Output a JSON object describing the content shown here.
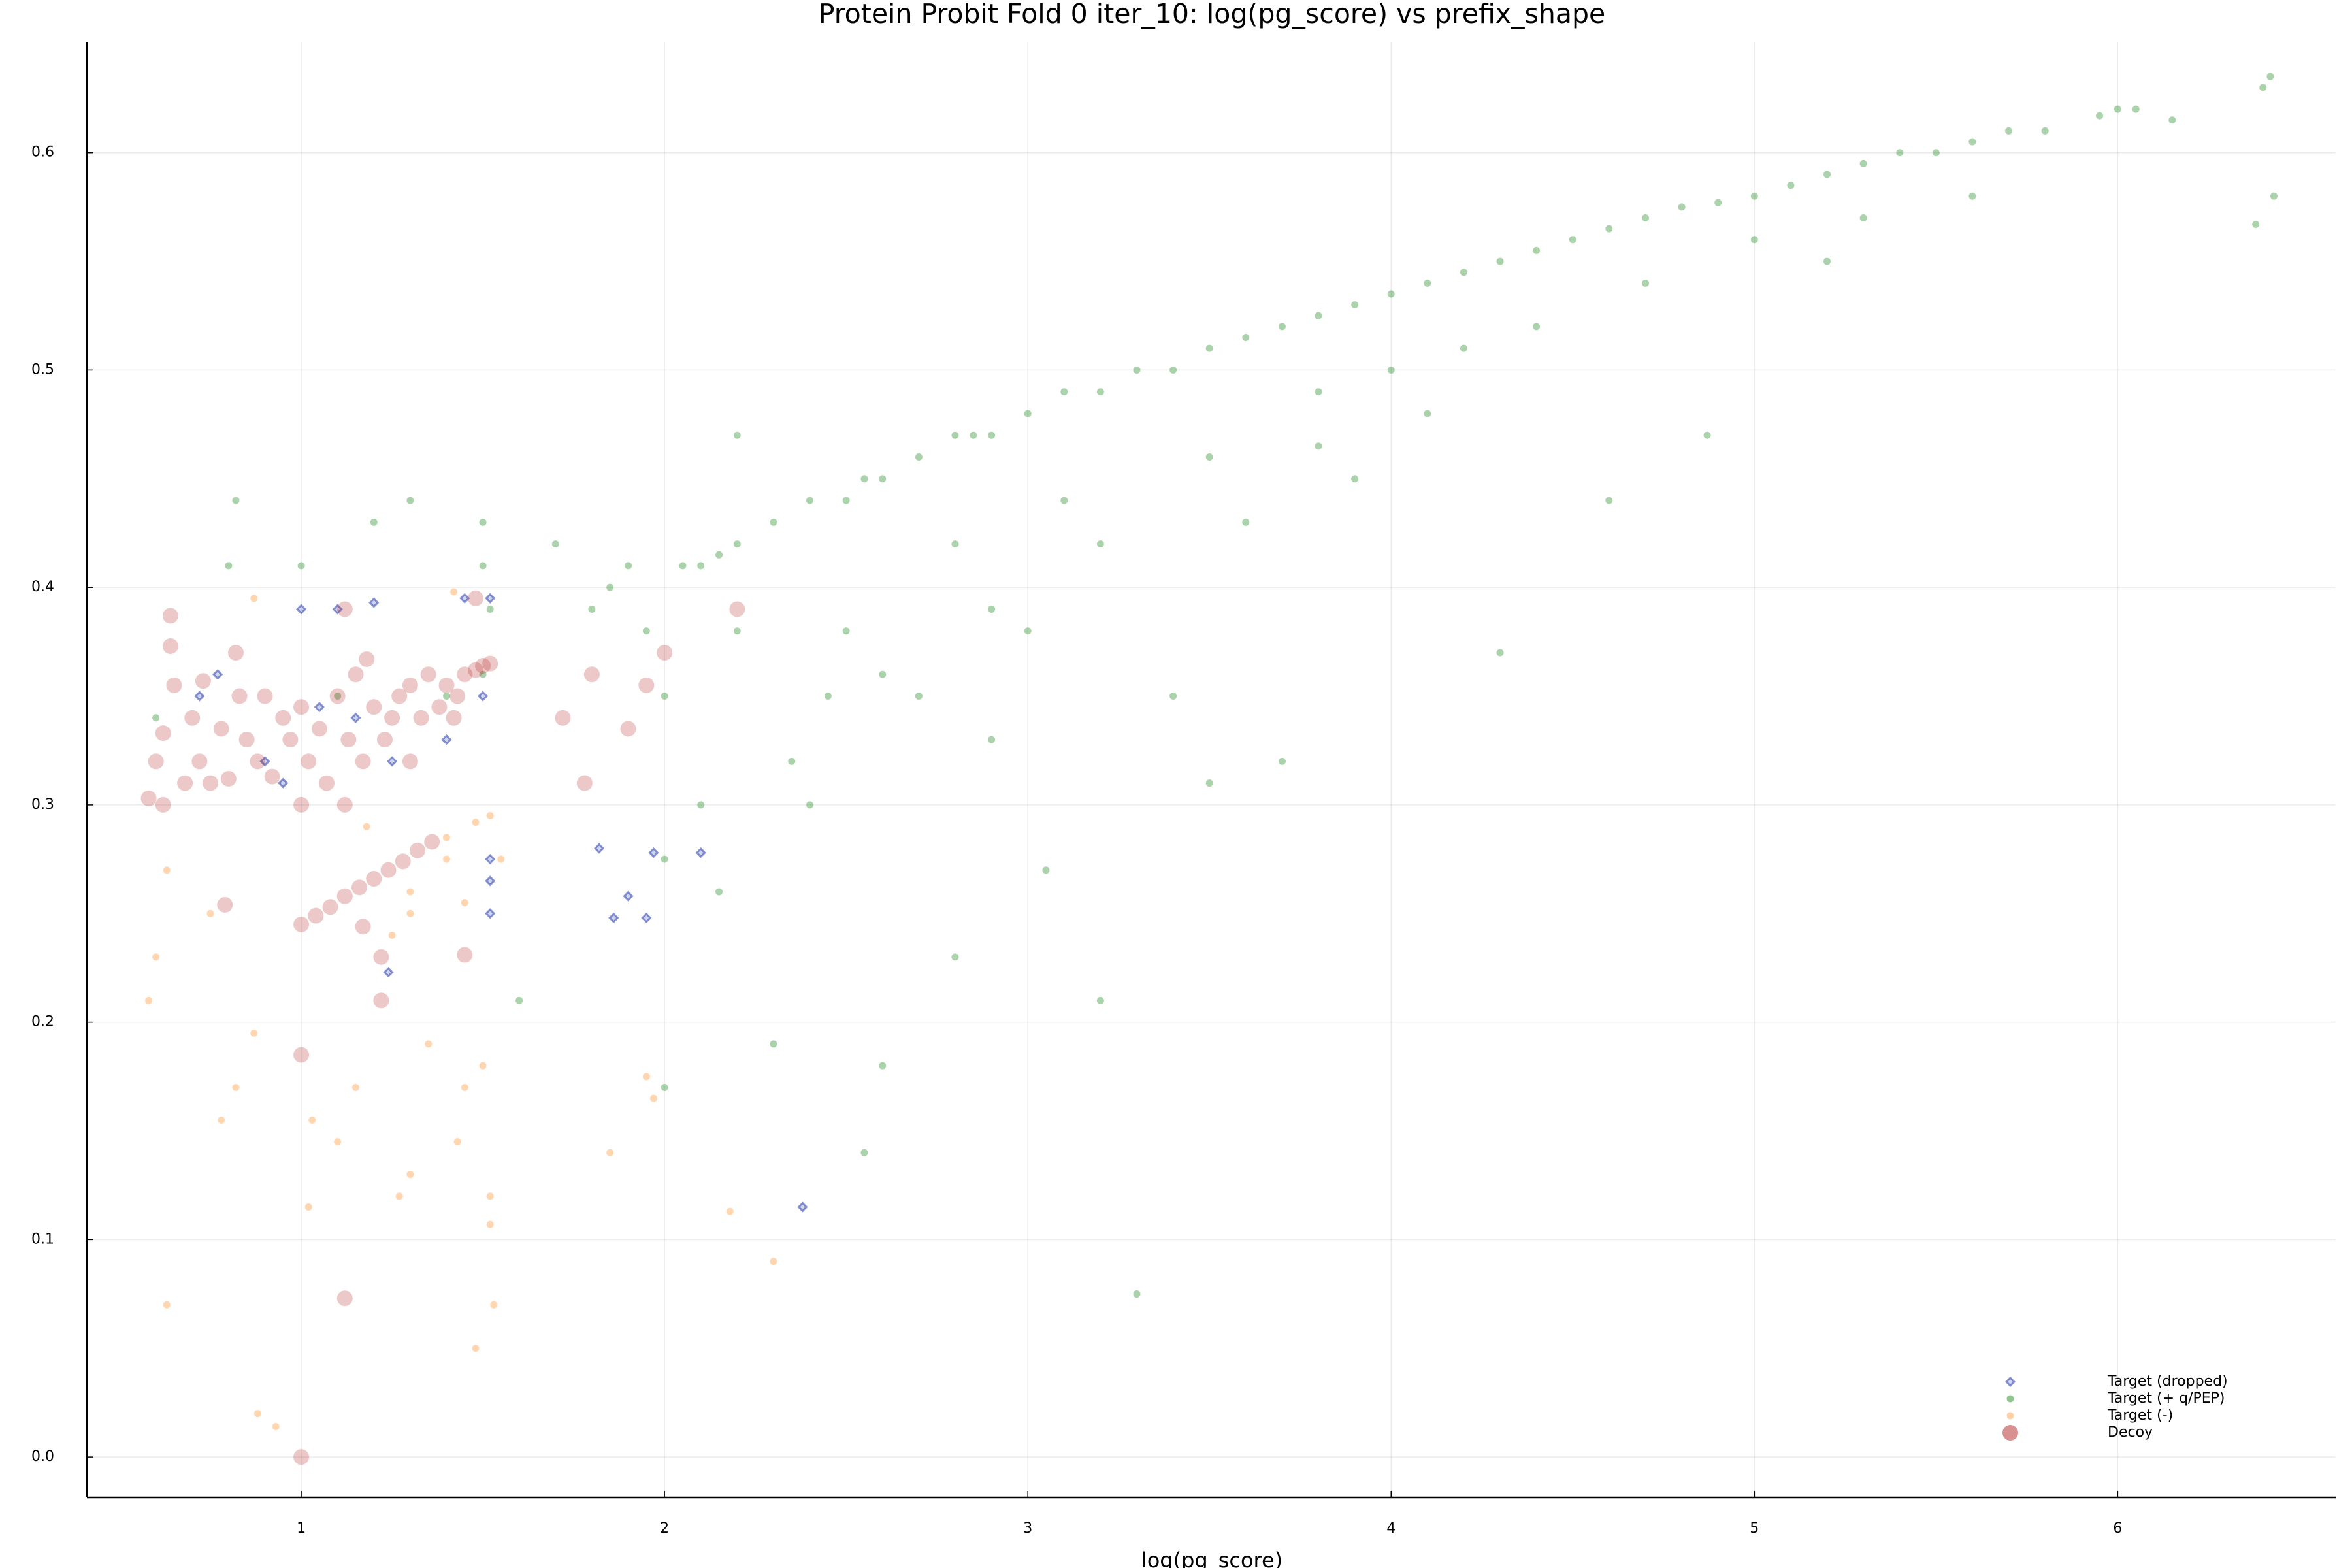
{
  "chart_data": {
    "type": "scatter",
    "title": "Protein Probit Fold 0 iter_10: log(pg_score) vs prefix_shape",
    "x_label": "log(pg_score)",
    "xlim": [
      0.41,
      6.6
    ],
    "ylim": [
      -0.0186,
      0.651
    ],
    "xticks": [
      1,
      2,
      3,
      4,
      5,
      6
    ],
    "yticks": [
      {
        "value": 0,
        "label": "0.0"
      },
      0.1,
      0.2,
      0.3,
      0.4,
      0.5,
      0.6
    ],
    "grid": true,
    "legend": "bottom-right",
    "series": [
      {
        "name": "Target (dropped)",
        "color": "#3a4fb5",
        "marker": "diamond",
        "alpha": 0.6,
        "x": [
          0.72,
          0.77,
          1.0,
          1.1,
          1.2,
          1.05,
          1.15,
          0.9,
          1.25,
          1.4,
          1.5,
          1.45,
          1.52,
          1.52,
          1.52,
          1.52,
          1.82,
          1.86,
          1.9,
          1.95,
          1.97,
          2.1,
          2.38,
          1.24,
          0.95
        ],
        "values": [
          0.35,
          0.36,
          0.39,
          0.39,
          0.393,
          0.345,
          0.34,
          0.32,
          0.32,
          0.33,
          0.35,
          0.395,
          0.395,
          0.275,
          0.265,
          0.25,
          0.28,
          0.248,
          0.258,
          0.248,
          0.278,
          0.278,
          0.115,
          0.223,
          0.31
        ]
      },
      {
        "name": "Target (+ q/PEP)",
        "color": "#228b22",
        "marker": "circle",
        "alpha": 0.38,
        "x": [
          0.6,
          0.8,
          0.82,
          1.0,
          1.1,
          1.2,
          1.3,
          1.5,
          1.5,
          1.52,
          1.5,
          1.4,
          1.6,
          1.7,
          1.8,
          1.85,
          1.9,
          1.95,
          2.0,
          2.05,
          2.1,
          2.15,
          2.2,
          2.2,
          2.1,
          2.0,
          2.2,
          2.3,
          2.4,
          2.5,
          2.55,
          2.6,
          2.5,
          2.6,
          2.4,
          2.3,
          2.55,
          2.6,
          2.7,
          2.8,
          2.85,
          2.9,
          2.8,
          2.9,
          2.7,
          2.8,
          2.9,
          3.0,
          3.1,
          3.2,
          3.3,
          3.1,
          3.2,
          3.0,
          3.05,
          3.2,
          3.3,
          3.4,
          3.5,
          3.6,
          3.5,
          3.6,
          3.5,
          3.7,
          3.7,
          3.8,
          3.9,
          3.8,
          3.9,
          4.0,
          4.1,
          4.2,
          4.0,
          4.1,
          4.3,
          4.3,
          4.4,
          4.5,
          4.4,
          4.6,
          4.6,
          4.7,
          4.8,
          4.7,
          4.87,
          4.9,
          5.0,
          5.1,
          5.0,
          5.2,
          5.3,
          5.4,
          5.3,
          5.5,
          5.6,
          5.7,
          5.6,
          5.8,
          5.95,
          6.0,
          6.05,
          6.15,
          6.4,
          6.42,
          6.43,
          6.38,
          2.0,
          2.15,
          2.35,
          2.45,
          3.4,
          3.8,
          4.2,
          5.2
        ],
        "values": [
          0.34,
          0.41,
          0.44,
          0.41,
          0.35,
          0.43,
          0.44,
          0.43,
          0.41,
          0.39,
          0.36,
          0.35,
          0.21,
          0.42,
          0.39,
          0.4,
          0.41,
          0.38,
          0.35,
          0.41,
          0.41,
          0.415,
          0.42,
          0.38,
          0.3,
          0.17,
          0.47,
          0.43,
          0.44,
          0.44,
          0.45,
          0.45,
          0.38,
          0.36,
          0.3,
          0.19,
          0.14,
          0.18,
          0.46,
          0.47,
          0.47,
          0.47,
          0.42,
          0.39,
          0.35,
          0.23,
          0.33,
          0.48,
          0.49,
          0.49,
          0.5,
          0.44,
          0.42,
          0.38,
          0.27,
          0.21,
          0.075,
          0.5,
          0.51,
          0.515,
          0.46,
          0.43,
          0.31,
          0.32,
          0.52,
          0.525,
          0.53,
          0.49,
          0.45,
          0.535,
          0.54,
          0.545,
          0.5,
          0.48,
          0.37,
          0.55,
          0.555,
          0.56,
          0.52,
          0.44,
          0.565,
          0.57,
          0.575,
          0.54,
          0.47,
          0.577,
          0.58,
          0.585,
          0.56,
          0.59,
          0.595,
          0.6,
          0.57,
          0.6,
          0.605,
          0.61,
          0.58,
          0.61,
          0.617,
          0.62,
          0.62,
          0.615,
          0.63,
          0.635,
          0.58,
          0.567,
          0.275,
          0.26,
          0.32,
          0.35,
          0.35,
          0.465,
          0.51,
          0.55
        ]
      },
      {
        "name": "Target (-)",
        "color": "#ffa54f",
        "marker": "circle",
        "alpha": 0.45,
        "x": [
          0.58,
          0.6,
          0.63,
          0.63,
          0.75,
          0.78,
          0.82,
          0.87,
          0.88,
          0.93,
          0.87,
          1.02,
          1.03,
          1.1,
          1.15,
          1.18,
          1.25,
          1.27,
          1.3,
          1.3,
          1.35,
          1.4,
          1.43,
          1.45,
          1.48,
          1.5,
          1.52,
          1.53,
          1.52,
          1.55,
          1.52,
          1.85,
          1.95,
          1.97,
          2.18,
          2.3,
          1.42,
          1.3,
          1.45,
          1.4,
          1.48
        ],
        "values": [
          0.21,
          0.23,
          0.07,
          0.27,
          0.25,
          0.155,
          0.17,
          0.195,
          0.02,
          0.014,
          0.395,
          0.115,
          0.155,
          0.145,
          0.17,
          0.29,
          0.24,
          0.12,
          0.13,
          0.25,
          0.19,
          0.275,
          0.145,
          0.17,
          0.05,
          0.18,
          0.12,
          0.07,
          0.107,
          0.275,
          0.295,
          0.14,
          0.175,
          0.165,
          0.113,
          0.09,
          0.398,
          0.26,
          0.255,
          0.285,
          0.292
        ]
      },
      {
        "name": "Decoy",
        "color": "#b22222",
        "marker": "large-circle",
        "alpha": 0.25,
        "x": [
          0.58,
          0.6,
          0.62,
          0.62,
          0.65,
          0.68,
          0.7,
          0.72,
          0.73,
          0.75,
          0.78,
          0.8,
          0.82,
          0.83,
          0.85,
          0.88,
          0.9,
          0.92,
          0.95,
          0.97,
          1.0,
          1.0,
          1.02,
          1.05,
          1.07,
          1.1,
          1.12,
          1.13,
          1.15,
          1.17,
          1.18,
          1.2,
          1.23,
          1.25,
          1.27,
          1.3,
          1.33,
          1.35,
          1.38,
          1.4,
          1.43,
          1.45,
          1.48,
          1.5,
          1.52,
          1.3,
          1.42,
          1.12,
          1.48,
          1.0,
          1.04,
          1.08,
          1.12,
          1.16,
          1.2,
          1.24,
          1.28,
          1.32,
          1.36,
          1.0,
          1.12,
          1.0,
          0.79,
          1.17,
          1.22,
          1.22,
          1.45,
          0.64,
          0.64,
          1.8,
          1.9,
          1.78,
          1.72,
          2.0,
          1.95,
          2.2
        ],
        "values": [
          0.303,
          0.32,
          0.3,
          0.333,
          0.355,
          0.31,
          0.34,
          0.32,
          0.357,
          0.31,
          0.335,
          0.312,
          0.37,
          0.35,
          0.33,
          0.32,
          0.35,
          0.313,
          0.34,
          0.33,
          0.3,
          0.345,
          0.32,
          0.335,
          0.31,
          0.35,
          0.3,
          0.33,
          0.36,
          0.32,
          0.367,
          0.345,
          0.33,
          0.34,
          0.35,
          0.355,
          0.34,
          0.36,
          0.345,
          0.355,
          0.35,
          0.36,
          0.362,
          0.364,
          0.365,
          0.32,
          0.34,
          0.39,
          0.395,
          0.245,
          0.249,
          0.253,
          0.258,
          0.262,
          0.266,
          0.27,
          0.274,
          0.279,
          0.283,
          0.0,
          0.073,
          0.185,
          0.254,
          0.244,
          0.23,
          0.21,
          0.231,
          0.387,
          0.373,
          0.36,
          0.335,
          0.31,
          0.34,
          0.37,
          0.355,
          0.39
        ]
      }
    ]
  }
}
